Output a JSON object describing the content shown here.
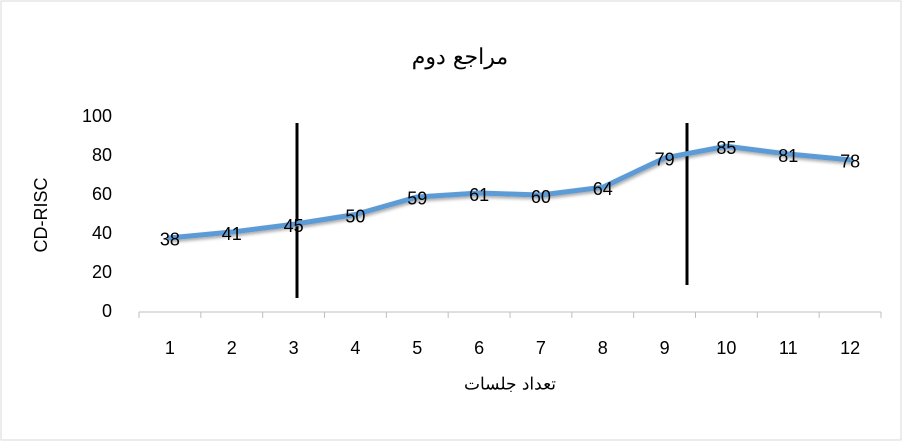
{
  "chart_data": {
    "type": "line",
    "title": "مراجع دوم",
    "x_label": "تعداد جلسات",
    "y_label": "CD-RISC",
    "categories": [
      "1",
      "2",
      "3",
      "4",
      "5",
      "6",
      "7",
      "8",
      "9",
      "10",
      "11",
      "12"
    ],
    "values": [
      38,
      41,
      45,
      50,
      59,
      61,
      60,
      64,
      79,
      85,
      81,
      78
    ],
    "color": "#5b9bd5",
    "ylim": [
      0,
      100
    ],
    "yticks": [
      0,
      20,
      40,
      60,
      80,
      100
    ],
    "grid": false
  }
}
